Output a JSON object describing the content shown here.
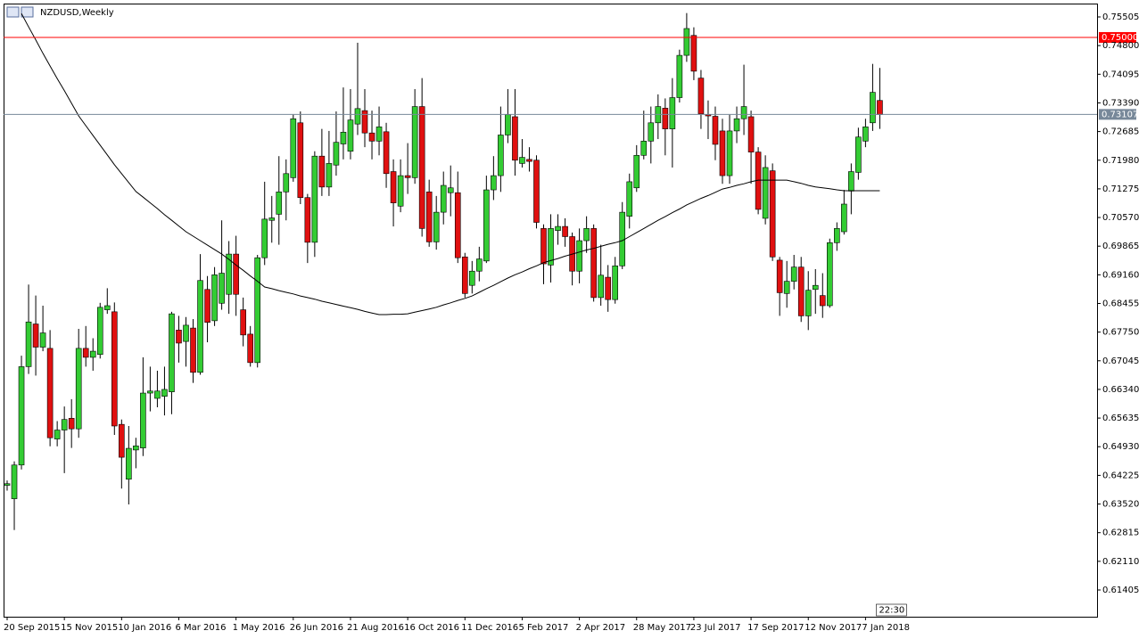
{
  "chart_data": {
    "type": "candlestick",
    "title": "NZDUSD,Weekly",
    "timer": "22:30",
    "grid": false,
    "up_color": "#33cc33",
    "down_color": "#e01010",
    "ylim": [
      0.60747,
      0.75834
    ],
    "yticks": [
      0.75505,
      {
        "value": 0.748,
        "label": "0.74800"
      },
      0.74095,
      {
        "value": 0.7339,
        "label": "0.73390"
      },
      0.72685,
      {
        "value": 0.7198,
        "label": "0.71980"
      },
      0.71275,
      {
        "value": 0.7057,
        "label": "0.70570"
      },
      0.69865,
      {
        "value": 0.6916,
        "label": "0.69160"
      },
      0.68455,
      {
        "value": 0.6775,
        "label": "0.67750"
      },
      0.67045,
      {
        "value": 0.6634,
        "label": "0.66340"
      },
      0.65635,
      {
        "value": 0.6493,
        "label": "0.64930"
      },
      0.64225,
      {
        "value": 0.6352,
        "label": "0.63520"
      },
      0.62815,
      {
        "value": 0.6211,
        "label": "0.62110"
      },
      0.61405
    ],
    "price_lines": [
      {
        "value": 0.75,
        "label": "0.75000",
        "color": "#ff0000"
      },
      {
        "value": 0.73107,
        "label": "0.73107",
        "color": "#778899"
      }
    ],
    "categories": [
      "20 Sep 2015",
      null,
      null,
      null,
      null,
      null,
      null,
      null,
      "15 Nov 2015",
      null,
      null,
      null,
      null,
      null,
      null,
      null,
      "10 Jan 2016",
      null,
      null,
      null,
      null,
      null,
      null,
      null,
      "6 Mar 2016",
      null,
      null,
      null,
      null,
      null,
      null,
      null,
      "1 May 2016",
      null,
      null,
      null,
      null,
      null,
      null,
      null,
      "26 Jun 2016",
      null,
      null,
      null,
      null,
      null,
      null,
      null,
      "21 Aug 2016",
      null,
      null,
      null,
      null,
      null,
      null,
      null,
      "16 Oct 2016",
      null,
      null,
      null,
      null,
      null,
      null,
      null,
      "11 Dec 2016",
      null,
      null,
      null,
      null,
      null,
      null,
      null,
      "5 Feb 2017",
      null,
      null,
      null,
      null,
      null,
      null,
      null,
      "2 Apr 2017",
      null,
      null,
      null,
      null,
      null,
      null,
      null,
      "28 May 2017",
      null,
      null,
      null,
      null,
      null,
      null,
      null,
      "23 Jul 2017",
      null,
      null,
      null,
      null,
      null,
      null,
      null,
      "17 Sep 2017",
      null,
      null,
      null,
      null,
      null,
      null,
      null,
      "12 Nov 2017",
      null,
      null,
      null,
      null,
      null,
      null,
      null,
      "7 Jan 2018",
      null,
      null
    ],
    "ohlc": [
      [
        0.6398,
        0.641,
        0.6385,
        0.6402
      ],
      [
        0.6365,
        0.6457,
        0.6288,
        0.6448
      ],
      [
        0.6448,
        0.6717,
        0.6437,
        0.669
      ],
      [
        0.669,
        0.6892,
        0.6672,
        0.68
      ],
      [
        0.6795,
        0.6865,
        0.6668,
        0.6738
      ],
      [
        0.6738,
        0.684,
        0.6728,
        0.6773
      ],
      [
        0.6735,
        0.678,
        0.6494,
        0.6515
      ],
      [
        0.6512,
        0.6556,
        0.6494,
        0.6534
      ],
      [
        0.6534,
        0.6592,
        0.6428,
        0.656
      ],
      [
        0.6563,
        0.661,
        0.649,
        0.6537
      ],
      [
        0.6537,
        0.6783,
        0.6515,
        0.6735
      ],
      [
        0.6735,
        0.679,
        0.669,
        0.6713
      ],
      [
        0.6713,
        0.676,
        0.668,
        0.6728
      ],
      [
        0.672,
        0.6847,
        0.671,
        0.6836
      ],
      [
        0.683,
        0.6883,
        0.682,
        0.684
      ],
      [
        0.6825,
        0.6848,
        0.6522,
        0.6544
      ],
      [
        0.6548,
        0.656,
        0.639,
        0.6467
      ],
      [
        0.6413,
        0.6544,
        0.6351,
        0.6489
      ],
      [
        0.6485,
        0.6515,
        0.644,
        0.6495
      ],
      [
        0.649,
        0.6713,
        0.647,
        0.6625
      ],
      [
        0.6625,
        0.669,
        0.658,
        0.663
      ],
      [
        0.6612,
        0.668,
        0.659,
        0.663
      ],
      [
        0.6617,
        0.669,
        0.657,
        0.6634
      ],
      [
        0.6628,
        0.6825,
        0.6573,
        0.682
      ],
      [
        0.678,
        0.6815,
        0.67,
        0.6748
      ],
      [
        0.6752,
        0.6812,
        0.669,
        0.6792
      ],
      [
        0.6785,
        0.6807,
        0.665,
        0.6676
      ],
      [
        0.6676,
        0.6967,
        0.667,
        0.6902
      ],
      [
        0.688,
        0.6913,
        0.675,
        0.6799
      ],
      [
        0.6803,
        0.6935,
        0.679,
        0.6916
      ],
      [
        0.6846,
        0.705,
        0.683,
        0.692
      ],
      [
        0.6868,
        0.6999,
        0.682,
        0.6967
      ],
      [
        0.6967,
        0.7012,
        0.6815,
        0.6868
      ],
      [
        0.683,
        0.686,
        0.674,
        0.6768
      ],
      [
        0.677,
        0.679,
        0.669,
        0.67
      ],
      [
        0.67,
        0.6965,
        0.6688,
        0.6958
      ],
      [
        0.6958,
        0.7145,
        0.694,
        0.7053
      ],
      [
        0.705,
        0.711,
        0.6995,
        0.7056
      ],
      [
        0.7065,
        0.7208,
        0.699,
        0.712
      ],
      [
        0.712,
        0.72,
        0.705,
        0.7165
      ],
      [
        0.7155,
        0.731,
        0.7145,
        0.73
      ],
      [
        0.729,
        0.7318,
        0.709,
        0.7106
      ],
      [
        0.7106,
        0.7115,
        0.6945,
        0.6996
      ],
      [
        0.6996,
        0.722,
        0.696,
        0.7208
      ],
      [
        0.7208,
        0.7275,
        0.711,
        0.7132
      ],
      [
        0.7132,
        0.727,
        0.711,
        0.719
      ],
      [
        0.7186,
        0.7318,
        0.716,
        0.7242
      ],
      [
        0.7238,
        0.7377,
        0.72,
        0.7267
      ],
      [
        0.722,
        0.7373,
        0.72,
        0.7297
      ],
      [
        0.7287,
        0.7487,
        0.726,
        0.7325
      ],
      [
        0.732,
        0.7373,
        0.723,
        0.7265
      ],
      [
        0.7265,
        0.732,
        0.72,
        0.7245
      ],
      [
        0.7245,
        0.733,
        0.721,
        0.728
      ],
      [
        0.7268,
        0.729,
        0.713,
        0.7165
      ],
      [
        0.717,
        0.72,
        0.7035,
        0.7093
      ],
      [
        0.7085,
        0.72,
        0.707,
        0.716
      ],
      [
        0.716,
        0.724,
        0.7115,
        0.7155
      ],
      [
        0.7155,
        0.7373,
        0.714,
        0.733
      ],
      [
        0.733,
        0.74,
        0.701,
        0.703
      ],
      [
        0.712,
        0.715,
        0.6985,
        0.6997
      ],
      [
        0.6997,
        0.711,
        0.6978,
        0.707
      ],
      [
        0.707,
        0.717,
        0.704,
        0.7136
      ],
      [
        0.7118,
        0.7185,
        0.706,
        0.713
      ],
      [
        0.7118,
        0.717,
        0.6945,
        0.6958
      ],
      [
        0.696,
        0.697,
        0.686,
        0.687
      ],
      [
        0.689,
        0.695,
        0.687,
        0.6925
      ],
      [
        0.6925,
        0.6985,
        0.69,
        0.6955
      ],
      [
        0.695,
        0.716,
        0.6945,
        0.7125
      ],
      [
        0.7125,
        0.7208,
        0.71,
        0.716
      ],
      [
        0.716,
        0.733,
        0.712,
        0.726
      ],
      [
        0.726,
        0.7373,
        0.724,
        0.731
      ],
      [
        0.7305,
        0.7373,
        0.716,
        0.7198
      ],
      [
        0.719,
        0.725,
        0.718,
        0.7205
      ],
      [
        0.72,
        0.723,
        0.717,
        0.7195
      ],
      [
        0.7198,
        0.721,
        0.703,
        0.7045
      ],
      [
        0.703,
        0.704,
        0.6893,
        0.6943
      ],
      [
        0.694,
        0.7065,
        0.6897,
        0.703
      ],
      [
        0.7025,
        0.7065,
        0.699,
        0.7035
      ],
      [
        0.7035,
        0.7055,
        0.6985,
        0.701
      ],
      [
        0.701,
        0.702,
        0.689,
        0.6925
      ],
      [
        0.6925,
        0.703,
        0.6895,
        0.7
      ],
      [
        0.7,
        0.706,
        0.697,
        0.703
      ],
      [
        0.703,
        0.704,
        0.685,
        0.686
      ],
      [
        0.686,
        0.699,
        0.684,
        0.6915
      ],
      [
        0.691,
        0.694,
        0.6825,
        0.6855
      ],
      [
        0.6855,
        0.696,
        0.6845,
        0.6938
      ],
      [
        0.6938,
        0.7095,
        0.693,
        0.707
      ],
      [
        0.706,
        0.7165,
        0.703,
        0.7145
      ],
      [
        0.713,
        0.7235,
        0.712,
        0.721
      ],
      [
        0.721,
        0.732,
        0.72,
        0.7245
      ],
      [
        0.7245,
        0.733,
        0.719,
        0.729
      ],
      [
        0.729,
        0.736,
        0.725,
        0.733
      ],
      [
        0.7326,
        0.735,
        0.721,
        0.7275
      ],
      [
        0.7275,
        0.74,
        0.718,
        0.7352
      ],
      [
        0.7352,
        0.747,
        0.734,
        0.7456
      ],
      [
        0.7456,
        0.756,
        0.744,
        0.7522
      ],
      [
        0.7505,
        0.7525,
        0.7395,
        0.7417
      ],
      [
        0.74,
        0.742,
        0.7275,
        0.7312
      ],
      [
        0.731,
        0.7345,
        0.725,
        0.7307
      ],
      [
        0.7306,
        0.733,
        0.7198,
        0.7237
      ],
      [
        0.727,
        0.73,
        0.714,
        0.716
      ],
      [
        0.716,
        0.731,
        0.714,
        0.727
      ],
      [
        0.727,
        0.733,
        0.724,
        0.73
      ],
      [
        0.73,
        0.7433,
        0.726,
        0.733
      ],
      [
        0.7305,
        0.732,
        0.714,
        0.7218
      ],
      [
        0.7218,
        0.723,
        0.7065,
        0.7077
      ],
      [
        0.7055,
        0.721,
        0.704,
        0.718
      ],
      [
        0.7172,
        0.719,
        0.695,
        0.696
      ],
      [
        0.6952,
        0.696,
        0.6815,
        0.6872
      ],
      [
        0.687,
        0.695,
        0.6835,
        0.69
      ],
      [
        0.69,
        0.6965,
        0.688,
        0.6935
      ],
      [
        0.6935,
        0.696,
        0.68,
        0.6815
      ],
      [
        0.6815,
        0.6925,
        0.678,
        0.6878
      ],
      [
        0.688,
        0.693,
        0.682,
        0.689
      ],
      [
        0.6865,
        0.692,
        0.681,
        0.684
      ],
      [
        0.684,
        0.7005,
        0.6835,
        0.6995
      ],
      [
        0.6995,
        0.7045,
        0.6975,
        0.703
      ],
      [
        0.7022,
        0.7125,
        0.7015,
        0.709
      ],
      [
        0.7122,
        0.719,
        0.7065,
        0.717
      ],
      [
        0.7168,
        0.7278,
        0.715,
        0.7255
      ],
      [
        0.7245,
        0.73,
        0.723,
        0.728
      ],
      [
        0.729,
        0.7435,
        0.727,
        0.7365
      ],
      [
        0.7345,
        0.7425,
        0.7275,
        0.731
      ]
    ],
    "moving_average": {
      "color": "#000000",
      "values": [
        null,
        null,
        0.7559,
        0.7526,
        0.7494,
        0.7461,
        0.743,
        0.7399,
        0.7369,
        0.7338,
        0.7307,
        0.7283,
        0.7259,
        0.7235,
        0.7211,
        0.7187,
        0.7165,
        0.7143,
        0.7121,
        0.7107,
        0.7093,
        0.7079,
        0.7064,
        0.705,
        0.7036,
        0.7022,
        0.7011,
        0.7,
        0.6989,
        0.6978,
        0.6967,
        0.6954,
        0.694,
        0.6927,
        0.6913,
        0.69,
        0.6886,
        0.6882,
        0.6877,
        0.6873,
        0.6869,
        0.6864,
        0.686,
        0.6856,
        0.6851,
        0.6847,
        0.6843,
        0.6839,
        0.6835,
        0.6831,
        0.6826,
        0.6822,
        0.6818,
        0.6818,
        0.6819,
        0.6819,
        0.682,
        0.6824,
        0.6828,
        0.6832,
        0.6836,
        0.6842,
        0.6847,
        0.6853,
        0.6858,
        0.6864,
        0.6873,
        0.6882,
        0.689,
        0.6899,
        0.6908,
        0.6916,
        0.6923,
        0.6931,
        0.6938,
        0.6946,
        0.6951,
        0.6956,
        0.6962,
        0.6967,
        0.6972,
        0.6977,
        0.6981,
        0.6986,
        0.6991,
        0.6995,
        0.7,
        0.701,
        0.702,
        0.703,
        0.704,
        0.705,
        0.7059,
        0.7069,
        0.7078,
        0.7088,
        0.7096,
        0.7104,
        0.7111,
        0.7119,
        0.7127,
        0.7131,
        0.7136,
        0.714,
        0.7145,
        0.7149,
        0.7149,
        0.7149,
        0.7149,
        0.7149,
        0.7145,
        0.7141,
        0.7136,
        0.7132,
        0.713,
        0.7128,
        0.7125,
        0.7123,
        0.7123,
        0.7123,
        0.7123,
        0.7123,
        0.7123
      ]
    }
  }
}
